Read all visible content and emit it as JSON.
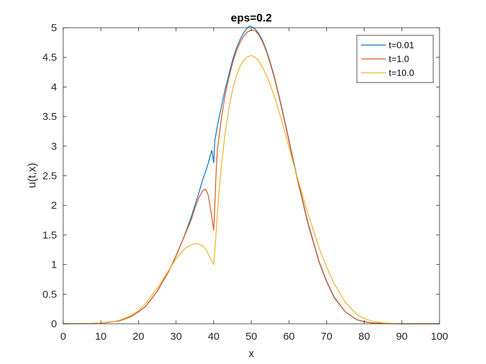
{
  "chart_data": {
    "type": "line",
    "title": "eps=0.2",
    "xlabel": "x",
    "ylabel": "u(t,x)",
    "xlim": [
      0,
      100
    ],
    "ylim": [
      0,
      5
    ],
    "xticks": [
      0,
      10,
      20,
      30,
      40,
      50,
      60,
      70,
      80,
      90,
      100
    ],
    "yticks": [
      0,
      0.5,
      1,
      1.5,
      2,
      2.5,
      3,
      3.5,
      4,
      4.5,
      5
    ],
    "xtick_labels": [
      "0",
      "10",
      "20",
      "30",
      "40",
      "50",
      "60",
      "70",
      "80",
      "90",
      "100"
    ],
    "ytick_labels": [
      "0",
      "0.5",
      "1",
      "1.5",
      "2",
      "2.5",
      "3",
      "3.5",
      "4",
      "4.5",
      "5"
    ],
    "grid": false,
    "legend_position": "top-right",
    "series": [
      {
        "name": "t=0.01",
        "color": "#0072BD",
        "x": [
          0,
          5,
          10,
          15,
          18,
          20,
          22,
          25,
          28,
          30,
          32,
          34,
          35,
          36,
          37,
          38,
          38.5,
          39,
          39.5,
          39.8,
          40,
          40.3,
          40.6,
          41,
          42,
          43,
          44,
          45,
          46,
          47,
          48,
          49,
          49.5,
          50,
          50.5,
          51,
          52,
          53,
          54,
          55,
          56,
          58,
          60,
          62,
          65,
          68,
          70,
          72,
          75,
          78,
          80,
          82,
          85,
          88,
          90,
          95,
          100
        ],
        "y": [
          0,
          0.002,
          0.01,
          0.05,
          0.12,
          0.2,
          0.3,
          0.55,
          0.88,
          1.15,
          1.45,
          1.8,
          2.0,
          2.2,
          2.42,
          2.6,
          2.7,
          2.82,
          2.93,
          2.8,
          2.72,
          3.1,
          3.2,
          3.35,
          3.65,
          3.95,
          4.2,
          4.45,
          4.65,
          4.8,
          4.92,
          5.0,
          5.03,
          5.02,
          5.0,
          4.98,
          4.9,
          4.78,
          4.62,
          4.42,
          4.2,
          3.68,
          3.1,
          2.52,
          1.72,
          1.05,
          0.72,
          0.45,
          0.2,
          0.07,
          0.035,
          0.015,
          0.005,
          0.001,
          0,
          0,
          0
        ]
      },
      {
        "name": "t=1.0",
        "color": "#D95319",
        "x": [
          0,
          5,
          10,
          15,
          18,
          20,
          22,
          25,
          28,
          30,
          32,
          34,
          35,
          36,
          37,
          37.5,
          38,
          38.5,
          39,
          39.5,
          40,
          40.3,
          40.6,
          41,
          42,
          43,
          44,
          45,
          46,
          47,
          48,
          49,
          50,
          50.5,
          51,
          52,
          53,
          54,
          55,
          56,
          58,
          60,
          62,
          65,
          68,
          70,
          72,
          75,
          78,
          80,
          82,
          85,
          88,
          90,
          95,
          100
        ],
        "y": [
          0,
          0.002,
          0.01,
          0.05,
          0.12,
          0.2,
          0.3,
          0.55,
          0.88,
          1.15,
          1.45,
          1.75,
          1.95,
          2.12,
          2.24,
          2.27,
          2.26,
          2.18,
          2.0,
          1.8,
          1.58,
          2.0,
          2.5,
          2.95,
          3.45,
          3.85,
          4.15,
          4.4,
          4.6,
          4.75,
          4.86,
          4.93,
          4.96,
          4.96,
          4.95,
          4.88,
          4.76,
          4.6,
          4.4,
          4.18,
          3.66,
          3.08,
          2.5,
          1.7,
          1.04,
          0.71,
          0.44,
          0.2,
          0.07,
          0.035,
          0.015,
          0.005,
          0.001,
          0,
          0,
          0
        ]
      },
      {
        "name": "t=10.0",
        "color": "#EDB120",
        "x": [
          0,
          5,
          10,
          12,
          15,
          18,
          20,
          22,
          25,
          28,
          30,
          32,
          33,
          34,
          35,
          36,
          37,
          38,
          39,
          39.5,
          40,
          40.5,
          41,
          42,
          43,
          44,
          45,
          46,
          47,
          48,
          49,
          50,
          51,
          52,
          53,
          54,
          55,
          56,
          58,
          60,
          62,
          65,
          68,
          70,
          72,
          75,
          78,
          80,
          82,
          85,
          88,
          90,
          95,
          100
        ],
        "y": [
          0,
          0.002,
          0.01,
          0.02,
          0.06,
          0.14,
          0.22,
          0.35,
          0.6,
          0.9,
          1.1,
          1.25,
          1.3,
          1.33,
          1.35,
          1.35,
          1.32,
          1.25,
          1.12,
          1.06,
          1.0,
          1.4,
          1.9,
          2.65,
          3.2,
          3.62,
          3.95,
          4.18,
          4.35,
          4.45,
          4.51,
          4.53,
          4.5,
          4.44,
          4.33,
          4.2,
          4.04,
          3.86,
          3.45,
          2.98,
          2.52,
          1.87,
          1.28,
          0.96,
          0.68,
          0.36,
          0.16,
          0.09,
          0.045,
          0.015,
          0.004,
          0.002,
          0,
          0
        ]
      }
    ]
  }
}
